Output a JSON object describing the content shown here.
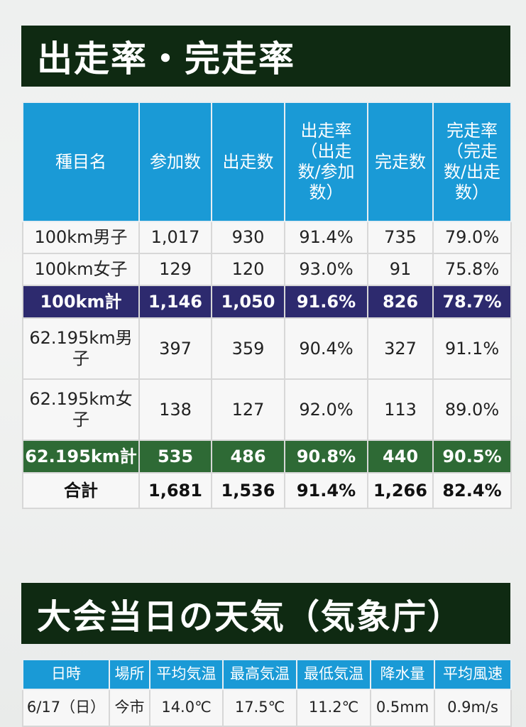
{
  "section1": {
    "title": "出走率・完走率"
  },
  "table1": {
    "headers": [
      "種目名",
      "参加数",
      "出走数",
      "出走率\n（出走\n数/参加\n数）",
      "完走数",
      "完走率\n（完走\n数/出走\n数）"
    ],
    "rows": [
      [
        "100km男子",
        "1,017",
        "930",
        "91.4%",
        "735",
        "79.0%"
      ],
      [
        "100km女子",
        "129",
        "120",
        "93.0%",
        "91",
        "75.8%"
      ],
      [
        "100km計",
        "1,146",
        "1,050",
        "91.6%",
        "826",
        "78.7%"
      ],
      [
        "62.195km男子",
        "397",
        "359",
        "90.4%",
        "327",
        "91.1%"
      ],
      [
        "62.195km女子",
        "138",
        "127",
        "92.0%",
        "113",
        "89.0%"
      ],
      [
        "62.195km計",
        "535",
        "486",
        "90.8%",
        "440",
        "90.5%"
      ],
      [
        "合計",
        "1,681",
        "1,536",
        "91.4%",
        "1,266",
        "82.4%"
      ]
    ]
  },
  "section2": {
    "title": "大会当日の天気（気象庁）"
  },
  "table2": {
    "headers": [
      "日時",
      "場所",
      "平均気温",
      "最高気温",
      "最低気温",
      "降水量",
      "平均風速"
    ],
    "row": [
      "6/17（日）",
      "今市",
      "14.0℃",
      "17.5℃",
      "11.2℃",
      "0.5mm",
      "0.9m/s"
    ]
  },
  "colors": {
    "banner_bg": "#0f2a12",
    "header_bg": "#1a9ad6",
    "sum100_bg": "#2d2a6e",
    "sum62_bg": "#2e6a35"
  }
}
